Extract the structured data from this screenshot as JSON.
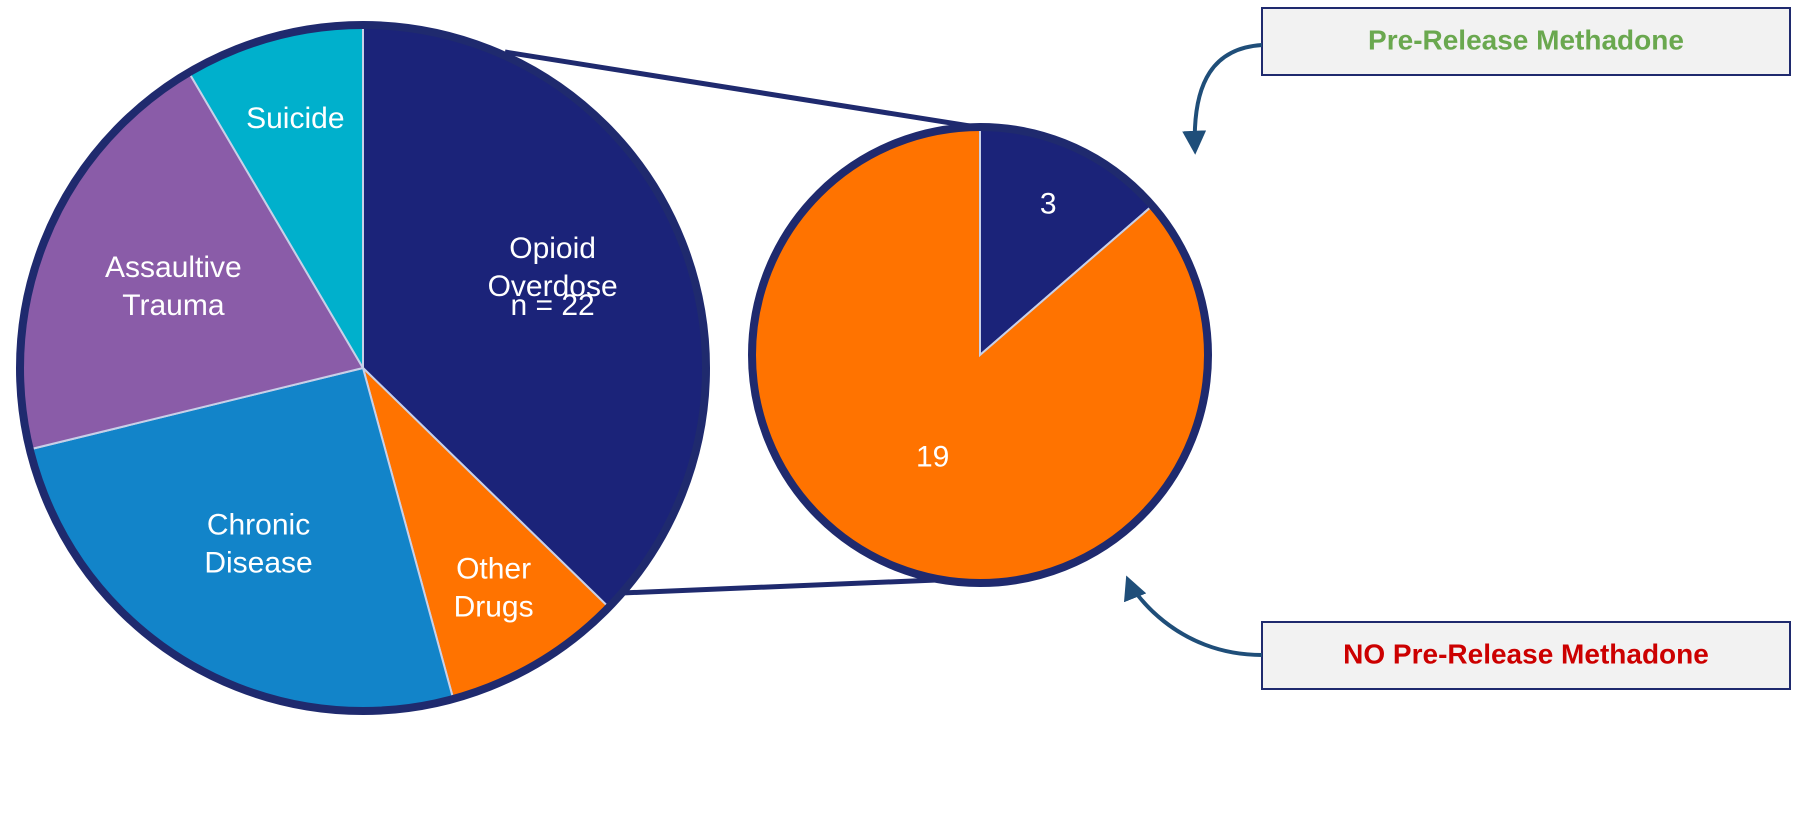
{
  "chart_data": [
    {
      "type": "pie",
      "categories": [
        "Opioid Overdose",
        "Other Drugs",
        "Chronic Disease",
        "Assaultive Trauma",
        "Suicide"
      ],
      "values": [
        22,
        5,
        15,
        12,
        5
      ],
      "value_labels": [
        "n = 22",
        null,
        null,
        null,
        null
      ],
      "colors": [
        "#1b2379",
        "#ff7300",
        "#1284c9",
        "#8a5ca8",
        "#00b0cc"
      ]
    },
    {
      "type": "pie",
      "categories": [
        "Pre-Release Methadone",
        "NO Pre-Release Methadone"
      ],
      "values": [
        3,
        19
      ],
      "colors": [
        "#1b2379",
        "#ff7300"
      ],
      "label_colors": [
        "#6aa84f",
        "#cc0000"
      ]
    }
  ]
}
